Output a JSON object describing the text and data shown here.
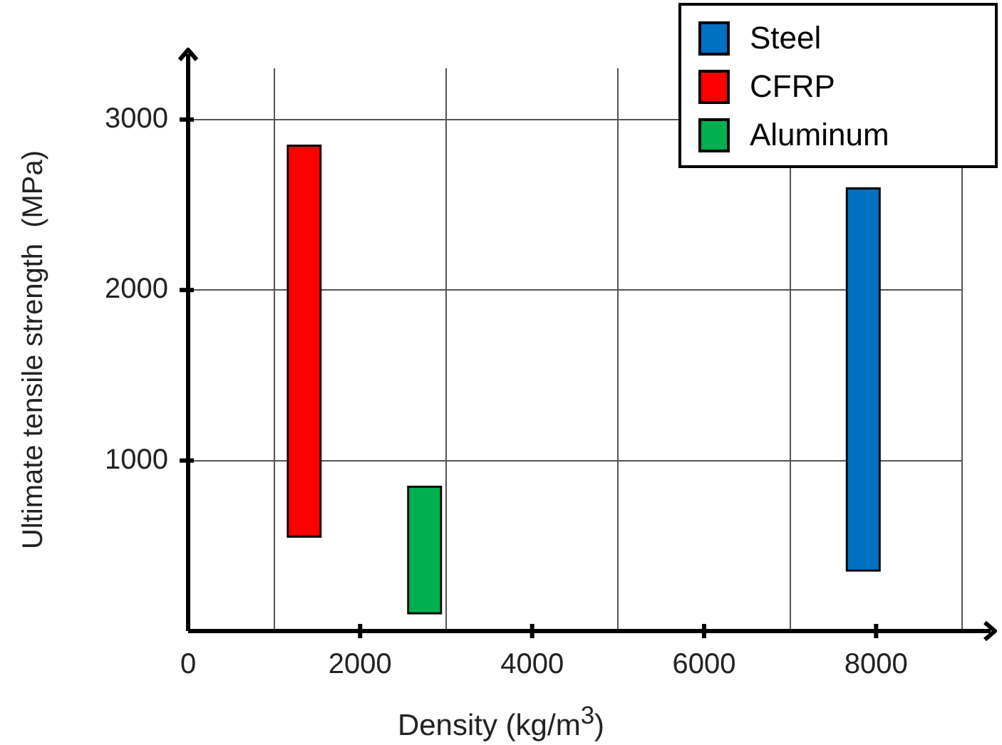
{
  "chart_data": {
    "type": "bar",
    "xlabel": "Density (kg/m$^{3}$)",
    "ylabel": "Ultimate tensile strength  (MPa)",
    "xlim": [
      0,
      9000
    ],
    "ylim": [
      0,
      3300
    ],
    "xticks": [
      0,
      2000,
      4000,
      6000,
      8000
    ],
    "yticks": [
      {
        "value": 0,
        "label": null
      },
      1000,
      2000,
      3000
    ],
    "grid": true,
    "legend": "top right",
    "series": [
      {
        "name": "Steel",
        "color": "#0070c0",
        "x": [
          7850
        ],
        "base": [
          350
        ],
        "values": [
          2250
        ]
      },
      {
        "name": "CFRP",
        "color": "#ff0000",
        "x": [
          1350
        ],
        "base": [
          550
        ],
        "values": [
          2300
        ]
      },
      {
        "name": "Aluminum",
        "color": "#00b050",
        "x": [
          2750
        ],
        "base": [
          100
        ],
        "values": [
          750
        ]
      }
    ]
  }
}
